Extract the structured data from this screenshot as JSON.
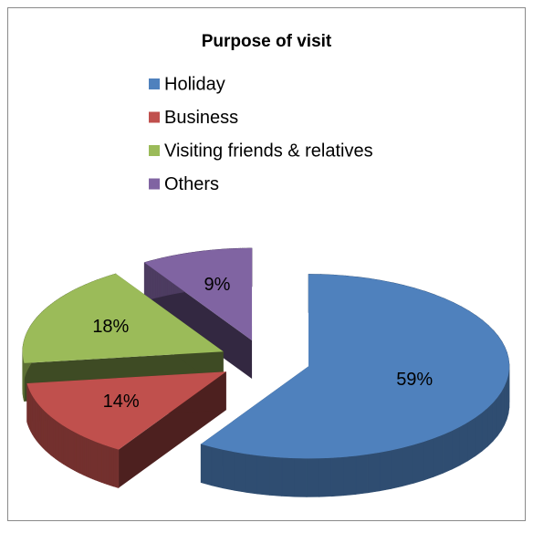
{
  "chart_data": {
    "type": "pie3d",
    "title": "Purpose of visit",
    "categories": [
      "Holiday",
      "Business",
      "Visiting friends & relatives",
      "Others"
    ],
    "values": [
      59,
      14,
      18,
      9
    ],
    "value_labels": [
      "59%",
      "14%",
      "18%",
      "9%"
    ],
    "colors": [
      "#4f81bd",
      "#c0504d",
      "#9bbb59",
      "#8064a2"
    ],
    "legend": "top"
  }
}
